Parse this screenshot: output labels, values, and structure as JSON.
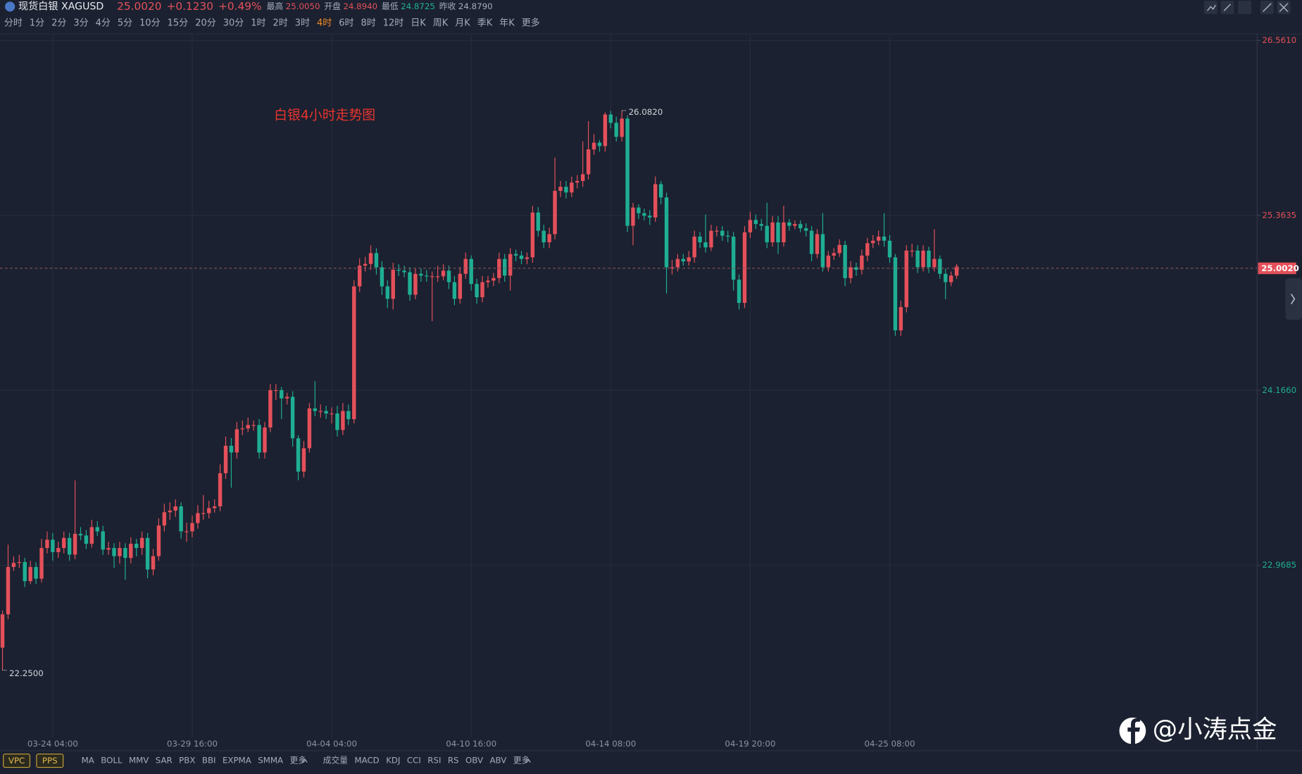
{
  "header": {
    "symbol": "现货白银 XAGUSD",
    "price": "25.0020",
    "change": "+0.1230",
    "change_pct": "+0.49%",
    "stats": [
      {
        "label": "最高",
        "value": "25.0050"
      },
      {
        "label": "开盘",
        "value": "24.8940"
      },
      {
        "label": "最低",
        "value": "24.8725"
      },
      {
        "label": "昨收",
        "value": "24.8790"
      }
    ]
  },
  "periods": [
    "分时",
    "1分",
    "2分",
    "3分",
    "4分",
    "5分",
    "10分",
    "15分",
    "20分",
    "30分",
    "1时",
    "2时",
    "3时",
    "4时",
    "6时",
    "8时",
    "12时",
    "日K",
    "周K",
    "月K",
    "季K",
    "年K",
    "更多"
  ],
  "active_period": "4时",
  "overlay_buttons": [
    "VPC",
    "PPS"
  ],
  "main_indicators": [
    "MA",
    "BOLL",
    "MMV",
    "SAR",
    "PBX",
    "BBI",
    "EXPMA",
    "SMMA",
    "更多"
  ],
  "sub_indicators": [
    "成交量",
    "MACD",
    "KDJ",
    "CCI",
    "RSI",
    "RS",
    "OBV",
    "ABV",
    "更多"
  ],
  "watermark": "@小涛点金",
  "chart_data": {
    "type": "candlestick",
    "title": "白银4小时走势图",
    "up_color": "#e4505a",
    "down_color": "#1fae93",
    "grid": true,
    "ylim": [
      21.79,
      26.6
    ],
    "yticks": [
      {
        "value": 22.9685,
        "label": "22.9685"
      },
      {
        "value": 24.166,
        "label": "24.1660"
      },
      {
        "value": 25.3635,
        "label": "25.3635"
      },
      {
        "value": 26.561,
        "label": "26.5610"
      }
    ],
    "last_price": {
      "value": 25.002,
      "label": "25.0020"
    },
    "extremes": [
      {
        "value": 26.082,
        "label": "26.0820"
      },
      {
        "value": 22.25,
        "label": "22.2500"
      }
    ],
    "categories": [
      null,
      null,
      null,
      null,
      null,
      null,
      null,
      null,
      null,
      "03-24 04:00",
      null,
      null,
      null,
      null,
      null,
      null,
      null,
      null,
      null,
      null,
      null,
      null,
      null,
      null,
      null,
      null,
      null,
      null,
      null,
      null,
      null,
      null,
      null,
      null,
      "03-29 16:00",
      null,
      null,
      null,
      null,
      null,
      null,
      null,
      null,
      null,
      null,
      null,
      null,
      null,
      null,
      null,
      null,
      null,
      null,
      null,
      null,
      null,
      null,
      null,
      null,
      "04-04 04:00",
      null,
      null,
      null,
      null,
      null,
      null,
      null,
      null,
      null,
      null,
      null,
      null,
      null,
      null,
      null,
      null,
      null,
      null,
      null,
      null,
      null,
      null,
      null,
      null,
      "04-10 16:00",
      null,
      null,
      null,
      null,
      null,
      null,
      null,
      null,
      null,
      null,
      null,
      null,
      null,
      null,
      null,
      null,
      null,
      null,
      null,
      null,
      null,
      null,
      null,
      null,
      "04-14 08:00",
      null,
      null,
      null,
      null,
      null,
      null,
      null,
      null,
      null,
      null,
      null,
      null,
      null,
      null,
      null,
      null,
      null,
      null,
      null,
      null,
      null,
      null,
      null,
      null,
      "04-19 20:00",
      null,
      null,
      null,
      null,
      null,
      null,
      null,
      null,
      null,
      null,
      null,
      null,
      null,
      null,
      null,
      null,
      null,
      null,
      null,
      null,
      null,
      null,
      null,
      null,
      "04-25 08:00",
      null,
      null,
      null,
      null,
      null,
      null,
      null,
      null,
      null,
      null,
      null,
      null
    ],
    "ohlc": [
      [
        22.405,
        22.66,
        22.25,
        22.633
      ],
      [
        22.633,
        23.11,
        22.6,
        22.957
      ],
      [
        22.957,
        23.03,
        22.93,
        22.985
      ],
      [
        22.985,
        23.04,
        22.95,
        22.991
      ],
      [
        22.991,
        23.02,
        22.82,
        22.86
      ],
      [
        22.86,
        23.0,
        22.84,
        22.957
      ],
      [
        22.957,
        22.99,
        22.84,
        22.877
      ],
      [
        22.877,
        23.15,
        22.85,
        23.087
      ],
      [
        23.087,
        23.2,
        23.05,
        23.144
      ],
      [
        23.144,
        23.19,
        23.0,
        23.059
      ],
      [
        23.059,
        23.13,
        23.02,
        23.087
      ],
      [
        23.087,
        23.2,
        23.05,
        23.156
      ],
      [
        23.156,
        23.19,
        23.0,
        23.042
      ],
      [
        23.042,
        23.55,
        23.01,
        23.184
      ],
      [
        23.184,
        23.23,
        23.14,
        23.173
      ],
      [
        23.173,
        23.21,
        23.08,
        23.116
      ],
      [
        23.116,
        23.28,
        23.09,
        23.23
      ],
      [
        23.23,
        23.27,
        23.17,
        23.201
      ],
      [
        23.201,
        23.24,
        23.04,
        23.076
      ],
      [
        23.076,
        23.13,
        23.04,
        23.087
      ],
      [
        23.087,
        23.12,
        22.95,
        23.031
      ],
      [
        23.031,
        23.13,
        22.98,
        23.087
      ],
      [
        23.087,
        23.12,
        22.87,
        23.019
      ],
      [
        23.019,
        23.16,
        22.98,
        23.116
      ],
      [
        23.116,
        23.15,
        23.03,
        23.087
      ],
      [
        23.087,
        23.2,
        23.04,
        23.156
      ],
      [
        23.156,
        23.19,
        22.88,
        22.94
      ],
      [
        22.94,
        23.08,
        22.9,
        23.031
      ],
      [
        23.031,
        23.29,
        23.0,
        23.241
      ],
      [
        23.241,
        23.39,
        23.2,
        23.332
      ],
      [
        23.332,
        23.4,
        23.28,
        23.343
      ],
      [
        23.343,
        23.42,
        23.3,
        23.372
      ],
      [
        23.372,
        23.4,
        23.15,
        23.201
      ],
      [
        23.201,
        23.26,
        23.13,
        23.201
      ],
      [
        23.201,
        23.31,
        23.16,
        23.258
      ],
      [
        23.258,
        23.38,
        23.22,
        23.326
      ],
      [
        23.326,
        23.45,
        23.28,
        23.326
      ],
      [
        23.326,
        23.41,
        23.29,
        23.36
      ],
      [
        23.36,
        23.42,
        23.33,
        23.372
      ],
      [
        23.372,
        23.66,
        23.34,
        23.599
      ],
      [
        23.599,
        23.85,
        23.56,
        23.787
      ],
      [
        23.787,
        23.84,
        23.5,
        23.741
      ],
      [
        23.741,
        23.95,
        23.7,
        23.9
      ],
      [
        23.9,
        23.96,
        23.86,
        23.906
      ],
      [
        23.906,
        23.98,
        23.88,
        23.929
      ],
      [
        23.929,
        23.96,
        23.89,
        23.929
      ],
      [
        23.929,
        23.97,
        23.7,
        23.741
      ],
      [
        23.741,
        23.95,
        23.7,
        23.912
      ],
      [
        23.912,
        24.21,
        23.88,
        24.168
      ],
      [
        24.168,
        24.21,
        24.1,
        24.168
      ],
      [
        24.168,
        24.19,
        23.97,
        24.111
      ],
      [
        24.111,
        24.15,
        24.07,
        24.122
      ],
      [
        24.122,
        24.16,
        23.78,
        23.838
      ],
      [
        23.838,
        23.86,
        23.55,
        23.61
      ],
      [
        23.61,
        23.82,
        23.57,
        23.77
      ],
      [
        23.77,
        24.08,
        23.74,
        24.043
      ],
      [
        24.043,
        24.23,
        23.99,
        24.025
      ],
      [
        24.025,
        24.07,
        23.98,
        24.025
      ],
      [
        24.025,
        24.06,
        23.97,
        24.008
      ],
      [
        24.008,
        24.05,
        23.94,
        24.008
      ],
      [
        24.008,
        24.06,
        23.85,
        23.895
      ],
      [
        23.895,
        24.08,
        23.86,
        24.025
      ],
      [
        24.025,
        24.07,
        23.93,
        23.969
      ],
      [
        23.969,
        24.92,
        23.94,
        24.878
      ],
      [
        24.878,
        25.07,
        24.84,
        25.02
      ],
      [
        25.02,
        25.08,
        24.98,
        25.032
      ],
      [
        25.032,
        25.16,
        24.99,
        25.106
      ],
      [
        25.106,
        25.14,
        24.96,
        25.009
      ],
      [
        25.009,
        25.05,
        24.82,
        24.878
      ],
      [
        24.878,
        24.92,
        24.73,
        24.793
      ],
      [
        24.793,
        25.04,
        24.72,
        24.992
      ],
      [
        24.992,
        25.03,
        24.95,
        24.986
      ],
      [
        24.986,
        25.02,
        24.94,
        24.975
      ],
      [
        24.975,
        25.01,
        24.78,
        24.821
      ],
      [
        24.821,
        25.0,
        24.79,
        24.964
      ],
      [
        24.964,
        25.0,
        24.91,
        24.952
      ],
      [
        24.952,
        24.99,
        24.91,
        24.947
      ],
      [
        24.947,
        24.98,
        24.64,
        24.947
      ],
      [
        24.947,
        25.02,
        24.91,
        24.947
      ],
      [
        24.947,
        25.03,
        24.92,
        24.986
      ],
      [
        24.986,
        25.02,
        24.86,
        24.907
      ],
      [
        24.907,
        24.95,
        24.75,
        24.793
      ],
      [
        24.793,
        25.01,
        24.76,
        24.964
      ],
      [
        24.964,
        25.11,
        24.93,
        25.066
      ],
      [
        25.066,
        25.09,
        24.85,
        24.895
      ],
      [
        24.895,
        24.93,
        24.76,
        24.804
      ],
      [
        24.804,
        24.95,
        24.77,
        24.907
      ],
      [
        24.907,
        24.95,
        24.87,
        24.918
      ],
      [
        24.918,
        24.97,
        24.88,
        24.935
      ],
      [
        24.935,
        25.11,
        24.9,
        25.066
      ],
      [
        25.066,
        25.1,
        24.91,
        24.952
      ],
      [
        24.952,
        25.14,
        24.85,
        25.1
      ],
      [
        25.1,
        25.13,
        25.05,
        25.089
      ],
      [
        25.089,
        25.12,
        25.03,
        25.066
      ],
      [
        25.066,
        25.11,
        25.03,
        25.077
      ],
      [
        25.077,
        25.43,
        25.04,
        25.384
      ],
      [
        25.384,
        25.42,
        25.22,
        25.259
      ],
      [
        25.259,
        25.3,
        25.14,
        25.18
      ],
      [
        25.18,
        25.28,
        25.14,
        25.236
      ],
      [
        25.236,
        25.76,
        25.2,
        25.532
      ],
      [
        25.532,
        25.6,
        25.49,
        25.56
      ],
      [
        25.56,
        25.6,
        25.48,
        25.521
      ],
      [
        25.521,
        25.63,
        25.49,
        25.589
      ],
      [
        25.589,
        25.64,
        25.55,
        25.6
      ],
      [
        25.6,
        25.87,
        25.56,
        25.646
      ],
      [
        25.646,
        26.01,
        25.61,
        25.816
      ],
      [
        25.816,
        25.92,
        25.78,
        25.862
      ],
      [
        25.862,
        25.88,
        25.8,
        25.839
      ],
      [
        25.839,
        26.07,
        25.8,
        26.055
      ],
      [
        26.055,
        26.08,
        25.96,
        25.998
      ],
      [
        25.998,
        26.04,
        25.87,
        25.902
      ],
      [
        25.902,
        26.082,
        25.87,
        26.027
      ],
      [
        26.027,
        26.05,
        25.25,
        25.293
      ],
      [
        25.293,
        25.45,
        25.16,
        25.418
      ],
      [
        25.418,
        25.44,
        25.34,
        25.379
      ],
      [
        25.379,
        25.41,
        25.33,
        25.362
      ],
      [
        25.362,
        25.4,
        25.3,
        25.35
      ],
      [
        25.35,
        25.63,
        25.32,
        25.578
      ],
      [
        25.578,
        25.6,
        25.44,
        25.487
      ],
      [
        25.487,
        25.52,
        24.83,
        25.009
      ],
      [
        25.009,
        25.06,
        24.96,
        25.009
      ],
      [
        25.009,
        25.1,
        24.98,
        25.066
      ],
      [
        25.066,
        25.1,
        25.02,
        25.049
      ],
      [
        25.049,
        25.12,
        25.02,
        25.077
      ],
      [
        25.077,
        25.26,
        25.04,
        25.219
      ],
      [
        25.219,
        25.25,
        25.14,
        25.18
      ],
      [
        25.18,
        25.37,
        25.11,
        25.145
      ],
      [
        25.145,
        25.3,
        25.12,
        25.259
      ],
      [
        25.259,
        25.29,
        25.22,
        25.259
      ],
      [
        25.259,
        25.29,
        25.19,
        25.225
      ],
      [
        25.225,
        25.26,
        25.18,
        25.219
      ],
      [
        25.219,
        25.25,
        24.85,
        24.924
      ],
      [
        24.924,
        24.96,
        24.72,
        24.765
      ],
      [
        24.765,
        25.29,
        24.73,
        25.248
      ],
      [
        25.248,
        25.39,
        25.21,
        25.333
      ],
      [
        25.333,
        25.37,
        25.27,
        25.305
      ],
      [
        25.305,
        25.34,
        25.26,
        25.293
      ],
      [
        25.293,
        25.45,
        25.14,
        25.18
      ],
      [
        25.18,
        25.36,
        25.15,
        25.316
      ],
      [
        25.316,
        25.36,
        25.1,
        25.18
      ],
      [
        25.18,
        25.43,
        25.15,
        25.316
      ],
      [
        25.316,
        25.34,
        25.26,
        25.293
      ],
      [
        25.293,
        25.33,
        25.27,
        25.305
      ],
      [
        25.305,
        25.33,
        25.25,
        25.276
      ],
      [
        25.276,
        25.31,
        25.22,
        25.259
      ],
      [
        25.259,
        25.29,
        25.05,
        25.1
      ],
      [
        25.1,
        25.27,
        25.07,
        25.236
      ],
      [
        25.236,
        25.38,
        24.98,
        25.009
      ],
      [
        25.009,
        25.12,
        24.98,
        25.089
      ],
      [
        25.089,
        25.14,
        25.06,
        25.106
      ],
      [
        25.106,
        25.2,
        25.08,
        25.162
      ],
      [
        25.162,
        25.19,
        24.88,
        24.935
      ],
      [
        24.935,
        25.05,
        24.9,
        25.009
      ],
      [
        25.009,
        25.04,
        24.95,
        24.992
      ],
      [
        24.992,
        25.13,
        24.96,
        25.089
      ],
      [
        25.089,
        25.21,
        25.05,
        25.174
      ],
      [
        25.174,
        25.23,
        25.14,
        25.191
      ],
      [
        25.191,
        25.26,
        25.16,
        25.219
      ],
      [
        25.219,
        25.38,
        25.15,
        25.191
      ],
      [
        25.191,
        25.23,
        25.04,
        25.077
      ],
      [
        25.077,
        25.1,
        24.54,
        24.577
      ],
      [
        24.577,
        24.78,
        24.54,
        24.736
      ],
      [
        24.736,
        25.16,
        24.7,
        25.123
      ],
      [
        25.123,
        25.17,
        25.08,
        25.123
      ],
      [
        25.123,
        25.16,
        24.97,
        25.009
      ],
      [
        25.009,
        25.16,
        24.98,
        25.123
      ],
      [
        25.123,
        25.15,
        24.97,
        25.009
      ],
      [
        25.009,
        25.27,
        24.98,
        25.066
      ],
      [
        25.066,
        25.09,
        24.93,
        24.964
      ],
      [
        24.964,
        25.0,
        24.79,
        24.907
      ],
      [
        24.907,
        24.98,
        24.88,
        24.952
      ],
      [
        24.952,
        25.03,
        24.93,
        25.002
      ]
    ]
  }
}
